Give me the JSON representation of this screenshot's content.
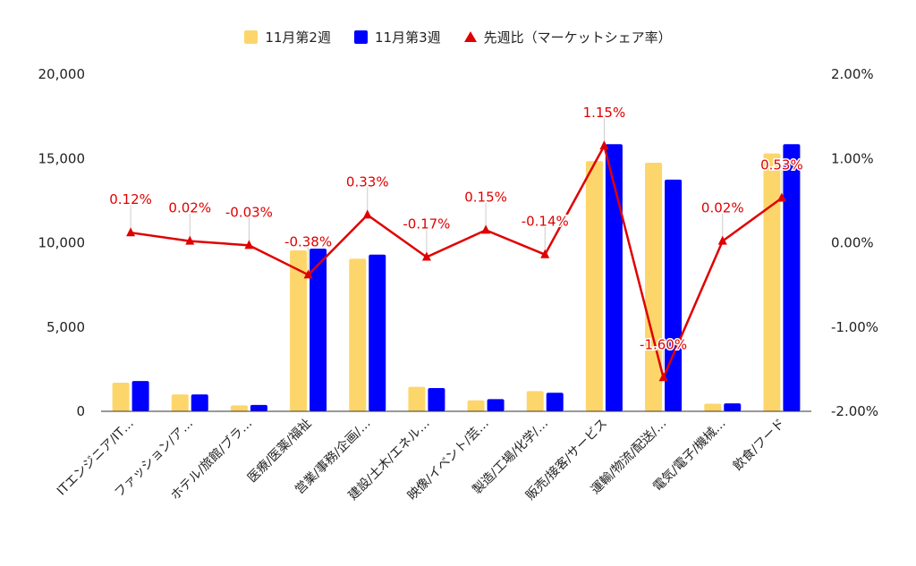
{
  "chart_data": {
    "type": "bar",
    "categories": [
      "ITエンジニア/IT…",
      "ファッション/ア…",
      "ホテル/旅館/ブラ…",
      "医療/医薬/福祉",
      "営業/事務/企画/…",
      "建設/土木/エネル…",
      "映像/イベント/芸…",
      "製造/工場/化学/…",
      "販売/接客/サービス",
      "運輸/物流/配送/…",
      "電気/電子/機械…",
      "飲食/フード"
    ],
    "series": [
      {
        "name": "11月第2週",
        "color": "#fdd66b",
        "values": [
          1700,
          1000,
          350,
          9550,
          9050,
          1450,
          650,
          1200,
          14850,
          14750,
          450,
          15300
        ]
      },
      {
        "name": "11月第3週",
        "color": "#0000ff",
        "values": [
          1800,
          1000,
          380,
          9650,
          9300,
          1380,
          720,
          1100,
          15850,
          13750,
          470,
          15850
        ]
      }
    ],
    "line_series": {
      "name": "先週比（マーケットシェア率）",
      "color": "#e00000",
      "axis": "right",
      "values": [
        0.12,
        0.02,
        -0.03,
        -0.38,
        0.33,
        -0.17,
        0.15,
        -0.14,
        1.15,
        -1.6,
        0.02,
        0.53
      ],
      "labels": [
        "0.12%",
        "0.02%",
        "-0.03%",
        "-0.38%",
        "0.33%",
        "-0.17%",
        "0.15%",
        "-0.14%",
        "1.15%",
        "-1.60%",
        "0.02%",
        "0.53%"
      ]
    },
    "y_left": {
      "lim": [
        0,
        20000
      ],
      "ticks": [
        "0",
        "5,000",
        "10,000",
        "15,000",
        "20,000"
      ]
    },
    "y_right": {
      "lim": [
        -2,
        2
      ],
      "ticks": [
        "-2.00%",
        "-1.00%",
        "0.00%",
        "1.00%",
        "2.00%"
      ]
    },
    "grid": false,
    "legend_position": "top-center"
  }
}
